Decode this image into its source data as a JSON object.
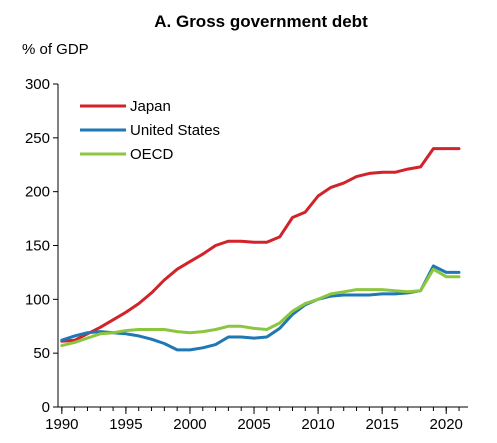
{
  "chart_data": {
    "type": "line",
    "title": "A. Gross government debt",
    "ylabel": "% of GDP",
    "xlabel": "",
    "xlim": [
      1989.7,
      2021.7
    ],
    "ylim": [
      0,
      300
    ],
    "x_ticks": [
      1990,
      1995,
      2000,
      2005,
      2010,
      2015,
      2020
    ],
    "y_ticks": [
      0,
      50,
      100,
      150,
      200,
      250,
      300
    ],
    "grid": false,
    "legend_position": "top-left",
    "x": [
      1990,
      1991,
      1992,
      1993,
      1994,
      1995,
      1996,
      1997,
      1998,
      1999,
      2000,
      2001,
      2002,
      2003,
      2004,
      2005,
      2006,
      2007,
      2008,
      2009,
      2010,
      2011,
      2012,
      2013,
      2014,
      2015,
      2016,
      2017,
      2018,
      2019,
      2020,
      2021
    ],
    "series": [
      {
        "name": "Japan",
        "color": "#d2232a",
        "values": [
          61,
          62,
          68,
          74,
          81,
          88,
          96,
          106,
          118,
          128,
          135,
          142,
          150,
          154,
          154,
          153,
          153,
          158,
          176,
          181,
          196,
          204,
          208,
          214,
          217,
          218,
          218,
          221,
          223,
          240,
          240,
          240
        ]
      },
      {
        "name": "United States",
        "color": "#1f77b4",
        "values": [
          62,
          66,
          69,
          70,
          69,
          68,
          66,
          63,
          59,
          53,
          53,
          55,
          58,
          65,
          65,
          64,
          65,
          73,
          86,
          95,
          100,
          103,
          104,
          104,
          104,
          105,
          105,
          106,
          108,
          131,
          125,
          125
        ]
      },
      {
        "name": "OECD",
        "color": "#8cc63f",
        "values": [
          57,
          60,
          64,
          68,
          69,
          71,
          72,
          72,
          72,
          70,
          69,
          70,
          72,
          75,
          75,
          73,
          72,
          78,
          89,
          96,
          100,
          105,
          107,
          109,
          109,
          109,
          108,
          107,
          108,
          128,
          121,
          121
        ]
      }
    ]
  }
}
